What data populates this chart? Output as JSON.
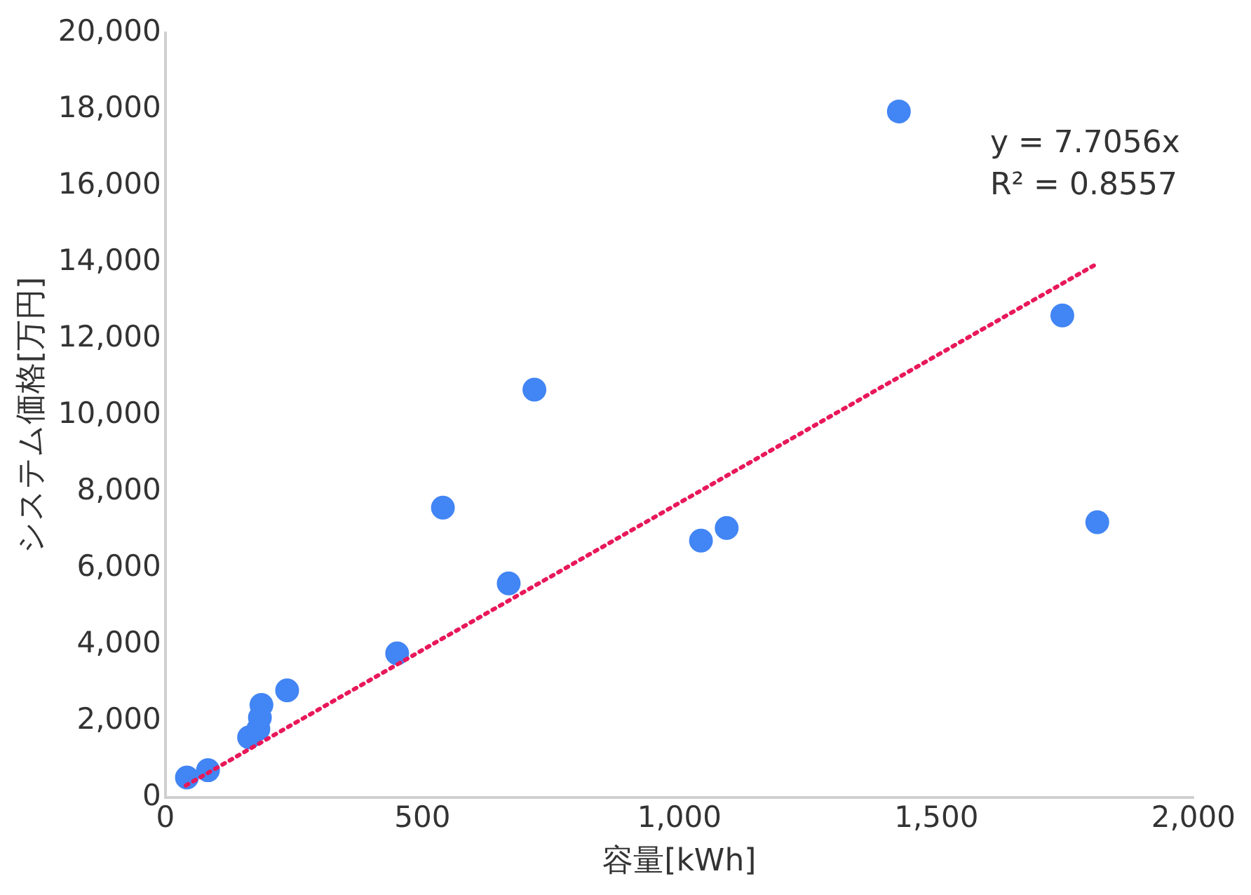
{
  "chart_data": {
    "type": "scatter",
    "xlabel": "容量[kWh]",
    "ylabel": "システム価格[万円]",
    "xlim": [
      0,
      2000
    ],
    "xticks": [
      0,
      500,
      {
        "value": 1000,
        "label": "1,000"
      },
      {
        "value": 1500,
        "label": "1,500"
      },
      {
        "value": 2000,
        "label": "2,000"
      }
    ],
    "ylim": [
      0,
      20000
    ],
    "yticks": [
      0,
      {
        "value": 2000,
        "label": "2,000"
      },
      {
        "value": 4000,
        "label": "4,000"
      },
      {
        "value": 6000,
        "label": "6,000"
      },
      {
        "value": 8000,
        "label": "8,000"
      },
      {
        "value": 10000,
        "label": "10,000"
      },
      {
        "value": 12000,
        "label": "12,000"
      },
      {
        "value": 14000,
        "label": "14,000"
      },
      {
        "value": 16000,
        "label": "16,000"
      },
      {
        "value": 18000,
        "label": "18,000"
      },
      {
        "value": 20000,
        "label": "20,000"
      }
    ],
    "grid": false,
    "legend": false,
    "marker": "circle",
    "series": [
      {
        "type": "scatter",
        "color": "#4285f4",
        "x": [
          42,
          83,
          163,
          181,
          184,
          187,
          237,
          451,
          540,
          668,
          718,
          1042,
          1092,
          1427,
          1745,
          1813
        ],
        "values": [
          520,
          710,
          1570,
          1790,
          2090,
          2420,
          2800,
          3770,
          7580,
          5600,
          10670,
          6720,
          7050,
          17950,
          12610,
          7200
        ]
      },
      {
        "type": "line",
        "color": "#e8185a",
        "line_style": "dotted",
        "marker": "none",
        "x": [
          40,
          1813
        ],
        "values": [
          310,
          13970
        ]
      }
    ],
    "annotations": [
      "y = 7.7056x",
      "R² = 0.8557"
    ]
  }
}
